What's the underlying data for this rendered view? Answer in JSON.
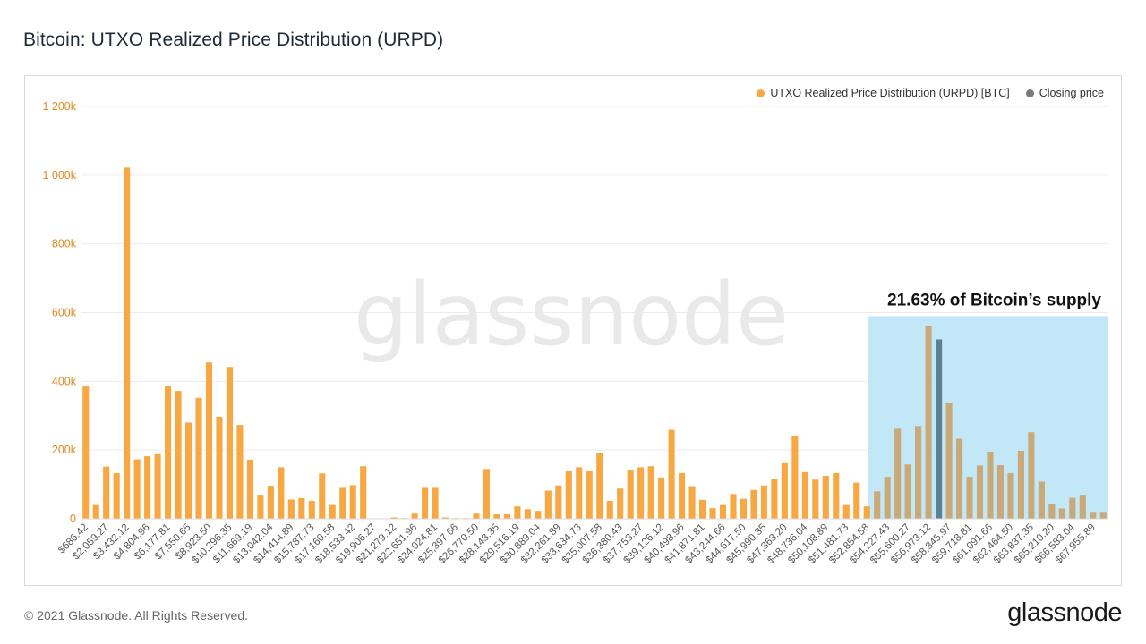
{
  "title": "Bitcoin: UTXO Realized Price Distribution (URPD)",
  "footer": "© 2021 Glassnode. All Rights Reserved.",
  "brand": "glassnode",
  "watermark": "glassnode",
  "legend": [
    {
      "label": "UTXO Realized Price Distribution (URPD) [BTC]",
      "color": "#f7a843"
    },
    {
      "label": "Closing price",
      "color": "#7a7a7a"
    }
  ],
  "annotation": {
    "text": "21.63% of Bitcoin’s supply",
    "highlight_color": "#bfe6f7",
    "from_category": "$52,854.58",
    "to_category": "$67,955.89"
  },
  "chart_data": {
    "type": "bar",
    "title": "Bitcoin: UTXO Realized Price Distribution (URPD)",
    "y_ticks": [
      "0",
      "200k",
      "400k",
      "600k",
      "800k",
      "1 000k",
      "1 200k"
    ],
    "ylim": [
      0,
      1200000
    ],
    "grid": true,
    "legend_position": "top-right",
    "closing_price_category": "$56,973.12",
    "categories": [
      "$686.42",
      "",
      "$2,059.27",
      "",
      "$3,432.12",
      "",
      "$4,804.96",
      "",
      "$6,177.81",
      "",
      "$7,550.65",
      "",
      "$8,923.50",
      "",
      "$10,296.35",
      "",
      "$11,669.19",
      "",
      "$13,042.04",
      "",
      "$14,414.89",
      "",
      "$15,787.73",
      "",
      "$17,160.58",
      "",
      "$18,533.42",
      "",
      "$19,906.27",
      "",
      "$21,279.12",
      "",
      "$22,651.96",
      "",
      "$24,024.81",
      "",
      "$25,397.66",
      "",
      "$26,770.50",
      "",
      "$28,143.35",
      "",
      "$29,516.19",
      "",
      "$30,889.04",
      "",
      "$32,261.89",
      "",
      "$33,634.73",
      "",
      "$35,007.58",
      "",
      "$36,380.43",
      "",
      "$37,753.27",
      "",
      "$39,126.12",
      "",
      "$40,498.96",
      "",
      "$41,871.81",
      "",
      "$43,244.66",
      "",
      "$44,617.50",
      "",
      "$45,990.35",
      "",
      "$47,363.20",
      "",
      "$48,736.04",
      "",
      "$50,108.89",
      "",
      "$51,481.73",
      "",
      "$52,854.58",
      "",
      "$54,227.43",
      "",
      "$55,600.27",
      "",
      "$56,973.12",
      "",
      "$58,345.97",
      "",
      "$59,718.81",
      "",
      "$61,091.66",
      "",
      "$62,464.50",
      "",
      "$63,837.35",
      "",
      "$65,210.20",
      "",
      "$66,583.04",
      "",
      "$67,955.89",
      ""
    ],
    "values": [
      385000,
      40000,
      152000,
      133000,
      1022000,
      173000,
      182000,
      188000,
      386000,
      372000,
      280000,
      352000,
      455000,
      297000,
      442000,
      273000,
      172000,
      70000,
      96000,
      150000,
      56000,
      60000,
      52000,
      132000,
      40000,
      90000,
      98000,
      153000,
      0,
      0,
      4000,
      2000,
      15000,
      90000,
      90000,
      4000,
      2000,
      2000,
      15000,
      145000,
      13000,
      13000,
      36000,
      28000,
      23000,
      82000,
      97000,
      138000,
      150000,
      138000,
      190000,
      52000,
      88000,
      142000,
      150000,
      153000,
      120000,
      259000,
      133000,
      95000,
      55000,
      31000,
      40000,
      72000,
      58000,
      84000,
      97000,
      117000,
      162000,
      241000,
      136000,
      114000,
      125000,
      133000,
      40000,
      105000,
      36000,
      80000,
      122000,
      262000,
      158000,
      270000,
      562000,
      522000,
      336000,
      233000,
      122000,
      155000,
      195000,
      156000,
      133000,
      198000,
      252000,
      108000,
      43000,
      30000,
      61000,
      70000,
      20000,
      20000
    ]
  }
}
